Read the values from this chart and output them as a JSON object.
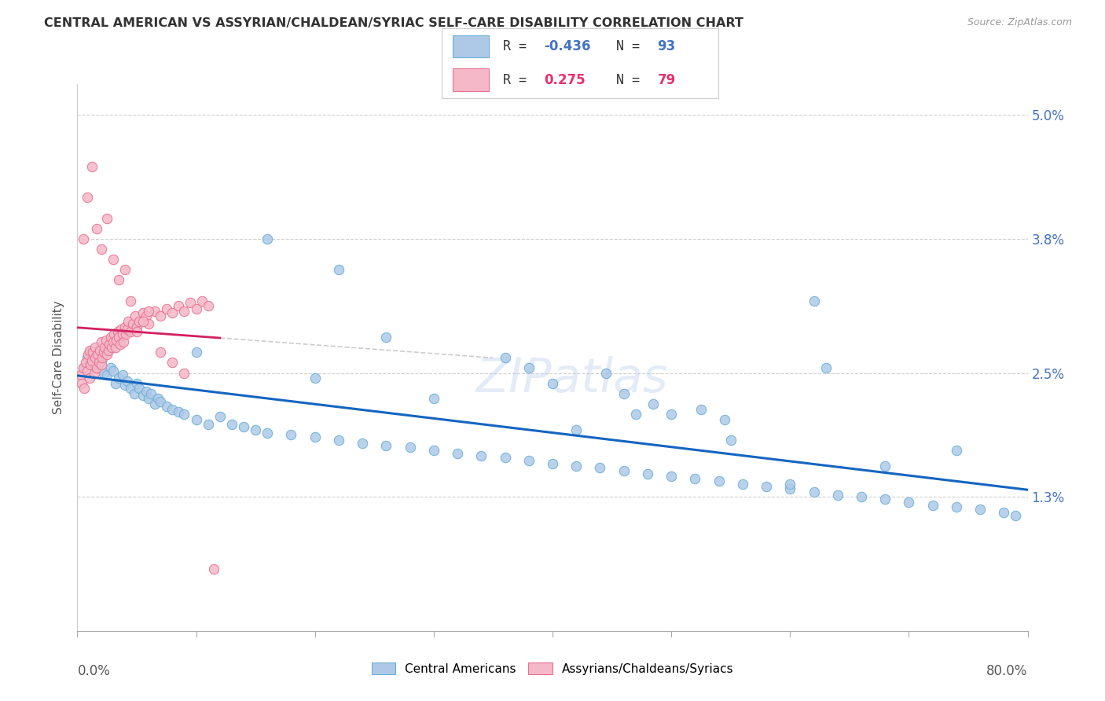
{
  "title": "CENTRAL AMERICAN VS ASSYRIAN/CHALDEAN/SYRIAC SELF-CARE DISABILITY CORRELATION CHART",
  "source": "Source: ZipAtlas.com",
  "ylabel": "Self-Care Disability",
  "yticks": [
    0.0,
    1.3,
    2.5,
    3.8,
    5.0
  ],
  "ytick_labels": [
    "",
    "1.3%",
    "2.5%",
    "3.8%",
    "5.0%"
  ],
  "xmin": 0.0,
  "xmax": 80.0,
  "ymin": 0.0,
  "ymax": 5.3,
  "legend_blue_label": "Central Americans",
  "legend_pink_label": "Assyrians/Chaldeans/Syriacs",
  "R_blue": -0.436,
  "N_blue": 93,
  "R_pink": 0.275,
  "N_pink": 79,
  "blue_fill": "#aec9e8",
  "blue_edge": "#6baed6",
  "pink_fill": "#f5b8c8",
  "pink_edge": "#e87090",
  "blue_line_color": "#1565c0",
  "pink_line_color": "#d42060",
  "watermark": "ZIPatlas",
  "blue_points_x": [
    0.5,
    0.8,
    1.0,
    1.2,
    1.5,
    1.8,
    2.0,
    2.2,
    2.5,
    2.8,
    3.0,
    3.2,
    3.5,
    3.8,
    4.0,
    4.2,
    4.5,
    4.8,
    5.0,
    5.2,
    5.5,
    5.8,
    6.0,
    6.2,
    6.5,
    6.8,
    7.0,
    7.5,
    8.0,
    8.5,
    9.0,
    10.0,
    11.0,
    12.0,
    13.0,
    14.0,
    15.0,
    16.0,
    18.0,
    20.0,
    22.0,
    24.0,
    26.0,
    28.0,
    30.0,
    32.0,
    34.0,
    36.0,
    38.0,
    40.0,
    40.0,
    42.0,
    44.0,
    44.5,
    46.0,
    47.0,
    48.0,
    48.5,
    50.0,
    52.0,
    52.5,
    54.0,
    54.5,
    56.0,
    58.0,
    60.0,
    62.0,
    63.0,
    64.0,
    66.0,
    68.0,
    70.0,
    72.0,
    74.0,
    76.0,
    78.0,
    79.0,
    30.0,
    42.0,
    46.0,
    22.0,
    36.0,
    50.0,
    62.0,
    74.0,
    16.0,
    26.0,
    38.0,
    55.0,
    68.0,
    10.0,
    20.0,
    60.0
  ],
  "blue_points_y": [
    2.55,
    2.65,
    2.7,
    2.6,
    2.55,
    2.58,
    2.62,
    2.5,
    2.48,
    2.55,
    2.52,
    2.4,
    2.45,
    2.48,
    2.38,
    2.42,
    2.35,
    2.3,
    2.4,
    2.35,
    2.28,
    2.32,
    2.25,
    2.3,
    2.2,
    2.25,
    2.22,
    2.18,
    2.15,
    2.12,
    2.1,
    2.05,
    2.0,
    2.08,
    2.0,
    1.98,
    1.95,
    1.92,
    1.9,
    1.88,
    1.85,
    1.82,
    1.8,
    1.78,
    1.75,
    1.72,
    1.7,
    1.68,
    1.65,
    1.62,
    2.4,
    1.6,
    1.58,
    2.5,
    1.55,
    2.1,
    1.52,
    2.2,
    1.5,
    1.48,
    2.15,
    1.45,
    2.05,
    1.42,
    1.4,
    1.38,
    1.35,
    2.55,
    1.32,
    1.3,
    1.28,
    1.25,
    1.22,
    1.2,
    1.18,
    1.15,
    1.12,
    2.25,
    1.95,
    2.3,
    3.5,
    2.65,
    2.1,
    3.2,
    1.75,
    3.8,
    2.85,
    2.55,
    1.85,
    1.6,
    2.7,
    2.45,
    1.42
  ],
  "pink_points_x": [
    0.3,
    0.4,
    0.5,
    0.6,
    0.7,
    0.8,
    0.9,
    1.0,
    1.0,
    1.1,
    1.2,
    1.3,
    1.4,
    1.5,
    1.5,
    1.6,
    1.7,
    1.8,
    1.9,
    2.0,
    2.0,
    2.1,
    2.2,
    2.3,
    2.4,
    2.5,
    2.6,
    2.7,
    2.8,
    2.9,
    3.0,
    3.1,
    3.2,
    3.3,
    3.4,
    3.5,
    3.6,
    3.7,
    3.8,
    3.9,
    4.0,
    4.1,
    4.2,
    4.3,
    4.5,
    4.7,
    4.9,
    5.0,
    5.2,
    5.5,
    5.8,
    6.0,
    6.5,
    7.0,
    7.5,
    8.0,
    8.5,
    9.0,
    9.5,
    10.0,
    10.5,
    11.0,
    11.5,
    0.5,
    0.8,
    1.2,
    1.6,
    2.0,
    2.5,
    3.0,
    3.5,
    4.0,
    4.5,
    5.0,
    5.5,
    6.0,
    7.0,
    8.0,
    9.0
  ],
  "pink_points_y": [
    2.48,
    2.4,
    2.55,
    2.35,
    2.6,
    2.52,
    2.68,
    2.45,
    2.72,
    2.58,
    2.62,
    2.7,
    2.5,
    2.65,
    2.75,
    2.55,
    2.68,
    2.6,
    2.72,
    2.58,
    2.8,
    2.65,
    2.7,
    2.75,
    2.82,
    2.68,
    2.72,
    2.78,
    2.85,
    2.75,
    2.8,
    2.88,
    2.75,
    2.82,
    2.9,
    2.85,
    2.78,
    2.92,
    2.88,
    2.8,
    2.95,
    2.88,
    2.92,
    3.0,
    2.9,
    2.98,
    3.05,
    2.95,
    3.0,
    3.08,
    3.05,
    2.98,
    3.1,
    3.05,
    3.12,
    3.08,
    3.15,
    3.1,
    3.18,
    3.12,
    3.2,
    3.15,
    0.6,
    3.8,
    4.2,
    4.5,
    3.9,
    3.7,
    4.0,
    3.6,
    3.4,
    3.5,
    3.2,
    2.9,
    3.0,
    3.1,
    2.7,
    2.6,
    2.5
  ]
}
